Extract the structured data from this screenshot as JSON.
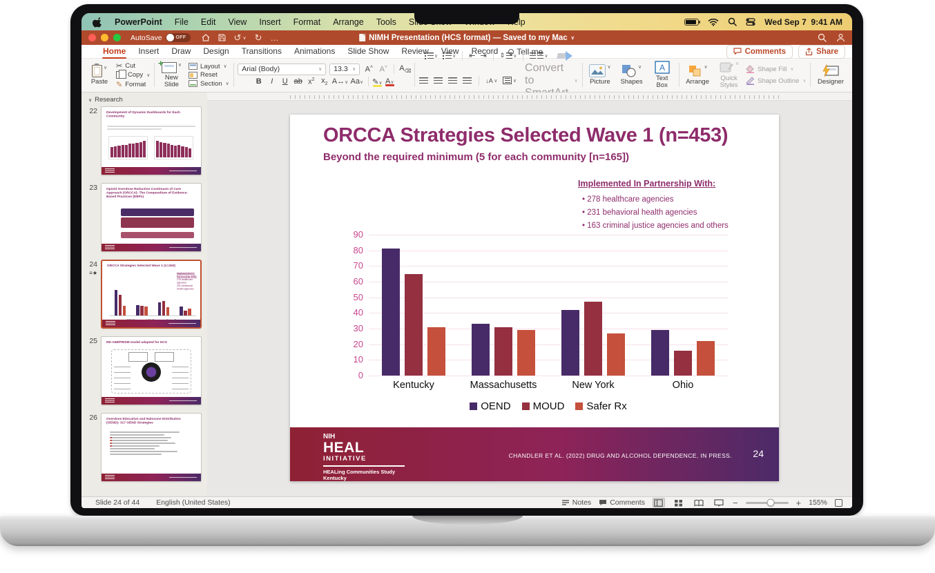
{
  "menu_bar": {
    "app_name": "PowerPoint",
    "items": [
      "File",
      "Edit",
      "View",
      "Insert",
      "Format",
      "Arrange",
      "Tools",
      "Slide Show",
      "Window",
      "Help"
    ],
    "date": "Wed Sep 7",
    "time": "9:41 AM"
  },
  "title_bar": {
    "autosave_label": "AutoSave",
    "autosave_state": "OFF",
    "title": "NIMH Presentation (HCS format) — Saved to my Mac"
  },
  "ribbon_tabs": {
    "tabs": [
      "Home",
      "Insert",
      "Draw",
      "Design",
      "Transitions",
      "Animations",
      "Slide Show",
      "Review",
      "View",
      "Record"
    ],
    "active_tab": "Home",
    "tell_me_label": "Tell me",
    "comments_label": "Comments",
    "share_label": "Share"
  },
  "ribbon": {
    "paste_label": "Paste",
    "cut_label": "Cut",
    "copy_label": "Copy",
    "format_label": "Format",
    "new_slide_label": "New\nSlide",
    "layout_label": "Layout",
    "reset_label": "Reset",
    "section_label": "Section",
    "font_name": "Arial (Body)",
    "font_size": "13.3",
    "convert_smartart_label": "Convert to\nSmartArt",
    "picture_label": "Picture",
    "shapes_label": "Shapes",
    "text_box_label": "Text\nBox",
    "arrange_label": "Arrange",
    "quick_styles_label": "Quick\nStyles",
    "shape_fill_label": "Shape Fill",
    "shape_outline_label": "Shape Outline",
    "designer_label": "Designer"
  },
  "sidebar": {
    "section_label": "Research",
    "slides": [
      {
        "number": "22",
        "title": "Development of Dynamic Dashboards for Each Community",
        "selected": false
      },
      {
        "number": "23",
        "title": "Opioid Overdose Reduction Continuum of Care Approach (ORCCA): The Compendium of Evidence-Based Practices (EBPs)",
        "selected": false
      },
      {
        "number": "24",
        "title": "ORCCA Strategies Selected Wave 1 (n=453)",
        "selected": true
      },
      {
        "number": "25",
        "title": "RE-AIM/PRISM model adapted for HCS",
        "selected": false
      },
      {
        "number": "26",
        "title": "Overdose Education and Naloxone Distribution (OEND): 317 OEND Strategies",
        "selected": false
      }
    ]
  },
  "slide": {
    "title": "ORCCA Strategies Selected Wave 1 (n=453)",
    "subtitle": "Beyond the required minimum (5 for each community [n=165])",
    "partnership_heading": "Implemented In Partnership With:",
    "partnership_bullets": [
      "278 healthcare agencies",
      "231 behavioral health agencies",
      "163 criminal justice agencies and others"
    ],
    "footer": {
      "logo_line1": "NIH",
      "logo_line2": "HEAL",
      "logo_line3": "INITIATIVE",
      "logo_caption_line1": "HEALing Communities Study",
      "logo_caption_line2": "Kentucky",
      "citation": "CHANDLER ET AL. (2022)  DRUG AND ALCOHOL DEPENDENCE, IN PRESS.",
      "page_number": "24"
    },
    "colors": {
      "title_text": "#8e2c6b",
      "axis_labels": "#c9458d",
      "footer_gradient_left": "#8f2134",
      "footer_gradient_right": "#4c2a68"
    }
  },
  "chart_data": {
    "type": "bar",
    "categories": [
      "Kentucky",
      "Massachusetts",
      "New York",
      "Ohio"
    ],
    "series": [
      {
        "name": "OEND",
        "color": "#472b68",
        "values": [
          81,
          33,
          42,
          29
        ]
      },
      {
        "name": "MOUD",
        "color": "#943040",
        "values": [
          65,
          31,
          47,
          16
        ]
      },
      {
        "name": "Safer Rx",
        "color": "#c5503c",
        "values": [
          31,
          29,
          27,
          22
        ]
      }
    ],
    "title": "",
    "xlabel": "",
    "ylabel": "",
    "ylim": [
      0,
      90
    ],
    "ytick_step": 10,
    "grid": true,
    "legend_position": "bottom"
  },
  "status_bar": {
    "slide_indicator": "Slide 24 of 44",
    "language": "English (United States)",
    "notes_label": "Notes",
    "comments_label": "Comments",
    "zoom_level": "155%"
  }
}
